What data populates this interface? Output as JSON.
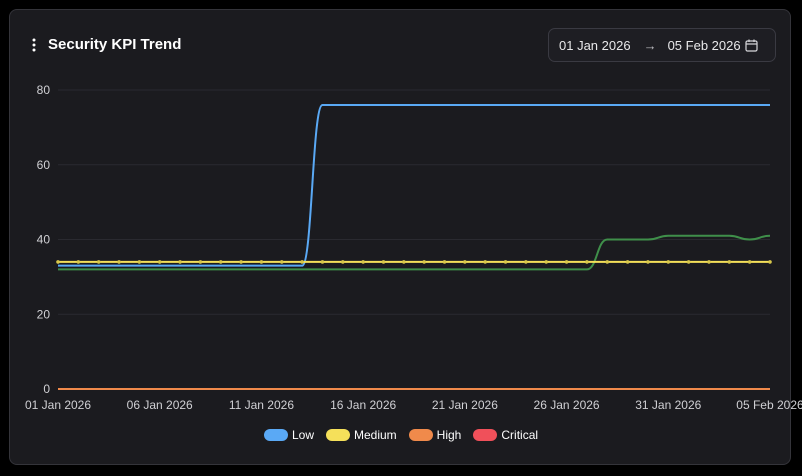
{
  "header": {
    "title": "Security KPI Trend",
    "menu_icon": "vertical-ellipsis-icon"
  },
  "date_range": {
    "start": "01 Jan 2026",
    "arrow": "→",
    "end": "05 Feb 2026",
    "icon": "calendar-icon"
  },
  "colors": {
    "background": "#1b1b1f",
    "grid": "#2a2a30",
    "axis_text": "#d0d0d4"
  },
  "chart_data": {
    "type": "line",
    "x": [
      "01 Jan 2026",
      "02 Jan 2026",
      "03 Jan 2026",
      "04 Jan 2026",
      "05 Jan 2026",
      "06 Jan 2026",
      "07 Jan 2026",
      "08 Jan 2026",
      "09 Jan 2026",
      "10 Jan 2026",
      "11 Jan 2026",
      "12 Jan 2026",
      "13 Jan 2026",
      "14 Jan 2026",
      "15 Jan 2026",
      "16 Jan 2026",
      "17 Jan 2026",
      "18 Jan 2026",
      "19 Jan 2026",
      "20 Jan 2026",
      "21 Jan 2026",
      "22 Jan 2026",
      "23 Jan 2026",
      "24 Jan 2026",
      "25 Jan 2026",
      "26 Jan 2026",
      "27 Jan 2026",
      "28 Jan 2026",
      "29 Jan 2026",
      "30 Jan 2026",
      "31 Jan 2026",
      "01 Feb 2026",
      "02 Feb 2026",
      "03 Feb 2026",
      "04 Feb 2026",
      "05 Feb 2026"
    ],
    "x_tick_labels": [
      "01 Jan 2026",
      "06 Jan 2026",
      "11 Jan 2026",
      "16 Jan 2026",
      "21 Jan 2026",
      "26 Jan 2026",
      "31 Jan 2026",
      "05 Feb 2026"
    ],
    "x_tick_indices": [
      0,
      5,
      10,
      15,
      20,
      25,
      30,
      35
    ],
    "ylim": [
      0,
      80
    ],
    "y_ticks": [
      0,
      20,
      40,
      60,
      80
    ],
    "grid": true,
    "legend_position": "bottom-center",
    "series": [
      {
        "name": "Low",
        "color": "#5aa9f5",
        "legend": true,
        "markers": false,
        "values": [
          33,
          33,
          33,
          33,
          33,
          33,
          33,
          33,
          33,
          33,
          33,
          33,
          33,
          76,
          76,
          76,
          76,
          76,
          76,
          76,
          76,
          76,
          76,
          76,
          76,
          76,
          76,
          76,
          76,
          76,
          76,
          76,
          76,
          76,
          76,
          76
        ]
      },
      {
        "name": "Medium",
        "color": "#f5e05a",
        "legend": true,
        "markers": true,
        "values": [
          34,
          34,
          34,
          34,
          34,
          34,
          34,
          34,
          34,
          34,
          34,
          34,
          34,
          34,
          34,
          34,
          34,
          34,
          34,
          34,
          34,
          34,
          34,
          34,
          34,
          34,
          34,
          34,
          34,
          34,
          34,
          34,
          34,
          34,
          34,
          34
        ]
      },
      {
        "name": "High",
        "color": "#f08a4b",
        "legend": true,
        "markers": false,
        "values": [
          0,
          0,
          0,
          0,
          0,
          0,
          0,
          0,
          0,
          0,
          0,
          0,
          0,
          0,
          0,
          0,
          0,
          0,
          0,
          0,
          0,
          0,
          0,
          0,
          0,
          0,
          0,
          0,
          0,
          0,
          0,
          0,
          0,
          0,
          0,
          0
        ]
      },
      {
        "name": "Critical",
        "color": "#f0505a",
        "legend": true,
        "markers": false,
        "values": [
          0,
          0,
          0,
          0,
          0,
          0,
          0,
          0,
          0,
          0,
          0,
          0,
          0,
          0,
          0,
          0,
          0,
          0,
          0,
          0,
          0,
          0,
          0,
          0,
          0,
          0,
          0,
          0,
          0,
          0,
          0,
          0,
          0,
          0,
          0,
          0
        ]
      },
      {
        "name": "",
        "color": "#3f8f4a",
        "legend": false,
        "markers": false,
        "values": [
          32,
          32,
          32,
          32,
          32,
          32,
          32,
          32,
          32,
          32,
          32,
          32,
          32,
          32,
          32,
          32,
          32,
          32,
          32,
          32,
          32,
          32,
          32,
          32,
          32,
          32,
          32,
          40,
          40,
          40,
          41,
          41,
          41,
          41,
          40,
          41
        ]
      }
    ]
  }
}
